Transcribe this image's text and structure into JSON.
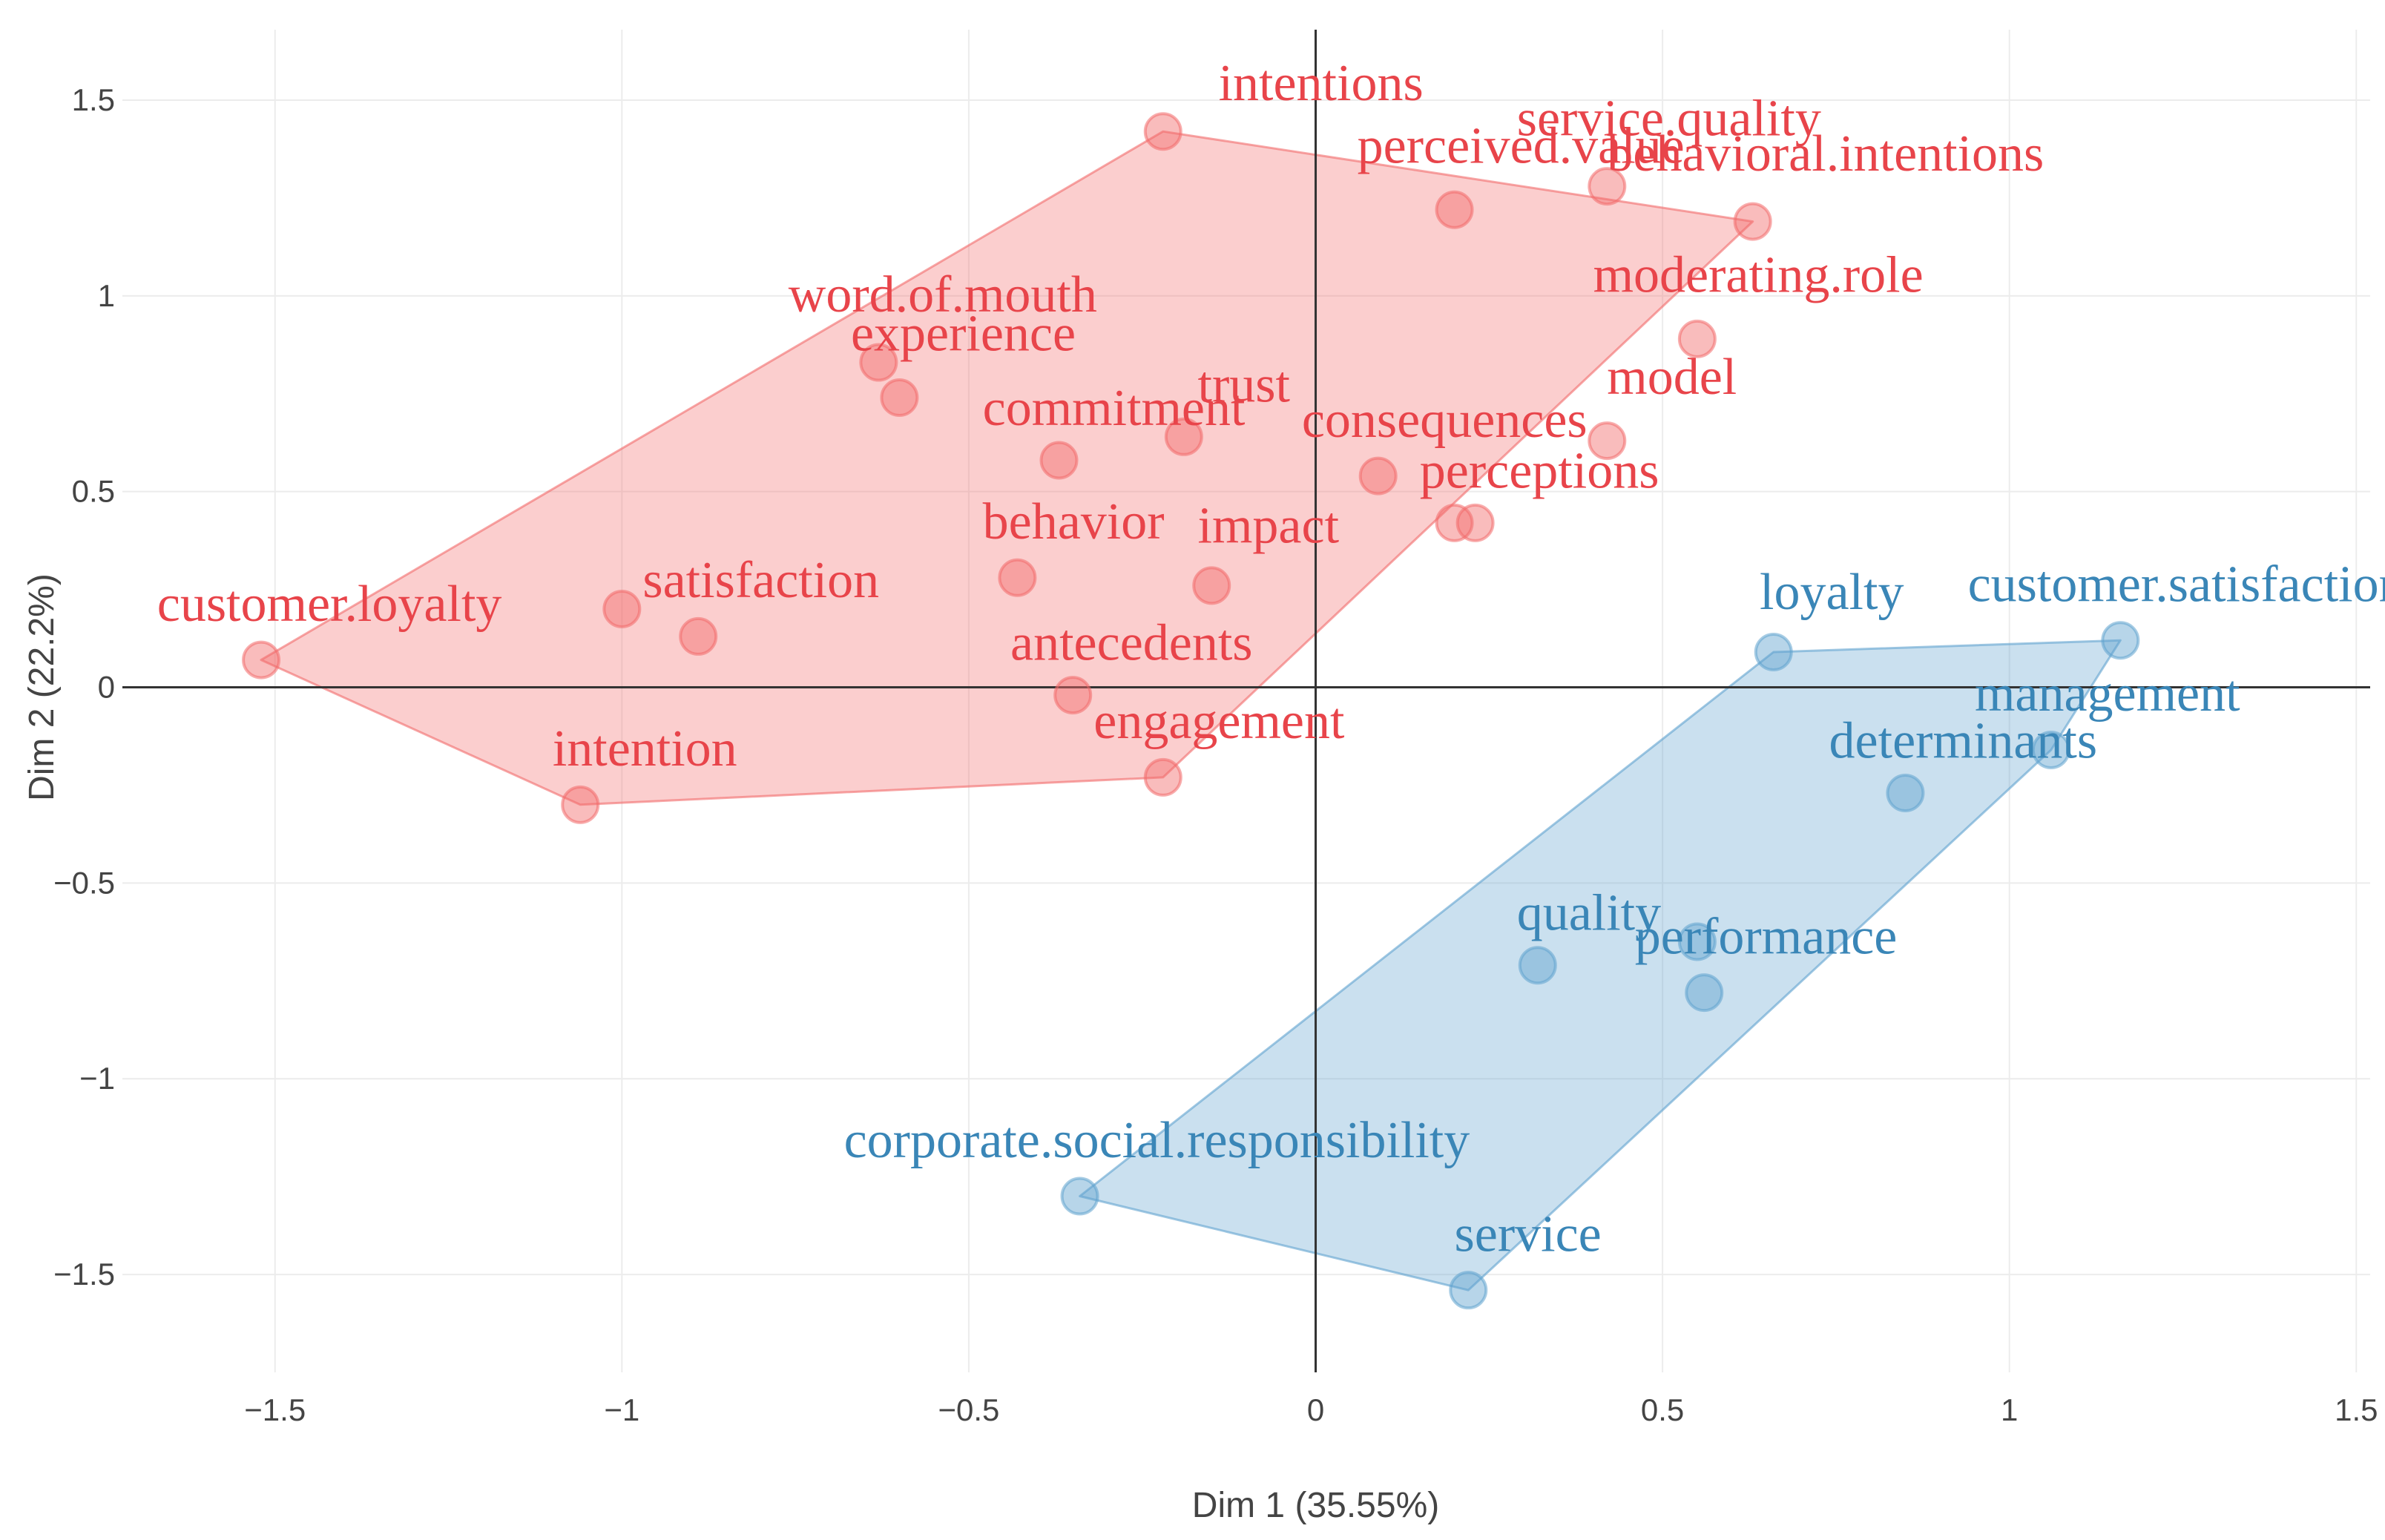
{
  "chart_data": {
    "type": "scatter",
    "title": "",
    "xlabel": "Dim 1 (35.55%)",
    "ylabel": "Dim 2 (22.2%)",
    "xlim": [
      -1.72,
      1.52
    ],
    "ylim": [
      -1.75,
      1.68
    ],
    "xticks": [
      -1.5,
      -1,
      -0.5,
      0,
      0.5,
      1,
      1.5
    ],
    "yticks": [
      -1.5,
      -1,
      -0.5,
      0,
      0.5,
      1,
      1.5
    ],
    "xtick_labels": [
      "−1.5",
      "−1",
      "−0.5",
      "0",
      "0.5",
      "1",
      "1.5"
    ],
    "ytick_labels": [
      "−1.5",
      "−1",
      "−0.5",
      "0",
      "0.5",
      "1",
      "1.5"
    ],
    "grid": true,
    "series": [
      {
        "color": "#f26a6a",
        "text_color": "#e8444a",
        "hull": [
          [
            -1.52,
            0.07
          ],
          [
            -1.06,
            -0.3
          ],
          [
            -0.22,
            -0.23
          ],
          [
            0.63,
            1.19
          ],
          [
            -0.22,
            1.42
          ]
        ],
        "points": [
          {
            "label": "intentions",
            "x": -0.22,
            "y": 1.42,
            "lx": -0.14,
            "ly": 1.5
          },
          {
            "label": "perceived.value",
            "x": 0.2,
            "y": 1.22,
            "lx": 0.06,
            "ly": 1.34
          },
          {
            "label": "service.quality",
            "x": 0.42,
            "y": 1.28,
            "lx": 0.29,
            "ly": 1.41
          },
          {
            "label": "behavioral.intentions",
            "x": 0.63,
            "y": 1.19,
            "lx": 0.42,
            "ly": 1.32
          },
          {
            "label": "moderating.role",
            "x": 0.55,
            "y": 0.89,
            "lx": 0.4,
            "ly": 1.01
          },
          {
            "label": "word.of.mouth",
            "x": -0.63,
            "y": 0.83,
            "lx": -0.76,
            "ly": 0.96
          },
          {
            "label": "experience",
            "x": -0.6,
            "y": 0.74,
            "lx": -0.67,
            "ly": 0.86
          },
          {
            "label": "trust",
            "x": -0.19,
            "y": 0.64,
            "lx": -0.17,
            "ly": 0.73
          },
          {
            "label": "commitment",
            "x": -0.37,
            "y": 0.58,
            "lx": -0.48,
            "ly": 0.67
          },
          {
            "label": "model",
            "x": 0.42,
            "y": 0.63,
            "lx": 0.42,
            "ly": 0.75
          },
          {
            "label": "consequences",
            "x": 0.09,
            "y": 0.54,
            "lx": -0.02,
            "ly": 0.64
          },
          {
            "label": "perceptions",
            "x": 0.2,
            "y": 0.42,
            "lx": 0.15,
            "ly": 0.51
          },
          {
            "label": "",
            "x": 0.23,
            "y": 0.42
          },
          {
            "label": "behavior",
            "x": -0.43,
            "y": 0.28,
            "lx": -0.48,
            "ly": 0.38
          },
          {
            "label": "impact",
            "x": -0.15,
            "y": 0.26,
            "lx": -0.17,
            "ly": 0.37
          },
          {
            "label": "satisfaction",
            "x": -0.89,
            "y": 0.13,
            "lx": -0.97,
            "ly": 0.23
          },
          {
            "label": "customer.loyalty",
            "x": -1.52,
            "y": 0.07,
            "lx": -1.67,
            "ly": 0.17
          },
          {
            "label": "",
            "x": -1.0,
            "y": 0.2
          },
          {
            "label": "antecedents",
            "x": -0.35,
            "y": -0.02,
            "lx": -0.44,
            "ly": 0.07
          },
          {
            "label": "engagement",
            "x": -0.22,
            "y": -0.23,
            "lx": -0.32,
            "ly": -0.13
          },
          {
            "label": "intention",
            "x": -1.06,
            "y": -0.3,
            "lx": -1.1,
            "ly": -0.2
          }
        ]
      },
      {
        "color": "#5fa2ce",
        "text_color": "#3a86b7",
        "hull": [
          [
            -0.34,
            -1.3
          ],
          [
            0.22,
            -1.54
          ],
          [
            1.06,
            -0.16
          ],
          [
            1.16,
            0.12
          ],
          [
            0.66,
            0.09
          ]
        ],
        "points": [
          {
            "label": "loyalty",
            "x": 0.66,
            "y": 0.09,
            "lx": 0.64,
            "ly": 0.2
          },
          {
            "label": "customer.satisfaction",
            "x": 1.16,
            "y": 0.12,
            "lx": 0.94,
            "ly": 0.22
          },
          {
            "label": "management",
            "x": 1.06,
            "y": -0.16,
            "lx": 0.95,
            "ly": -0.06
          },
          {
            "label": "determinants",
            "x": 0.85,
            "y": -0.27,
            "lx": 0.74,
            "ly": -0.18
          },
          {
            "label": "quality",
            "x": 0.32,
            "y": -0.71,
            "lx": 0.29,
            "ly": -0.62
          },
          {
            "label": "performance",
            "x": 0.56,
            "y": -0.78,
            "lx": 0.46,
            "ly": -0.68
          },
          {
            "label": "",
            "x": 0.55,
            "y": -0.65
          },
          {
            "label": "corporate.social.responsibility",
            "x": -0.34,
            "y": -1.3,
            "lx": -0.68,
            "ly": -1.2
          },
          {
            "label": "service",
            "x": 0.22,
            "y": -1.54,
            "lx": 0.2,
            "ly": -1.44
          }
        ]
      }
    ]
  }
}
